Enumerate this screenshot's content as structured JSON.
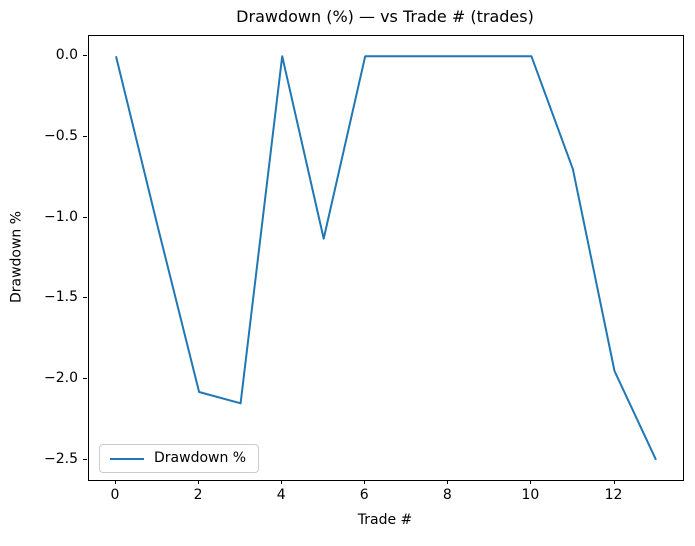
{
  "chart_data": {
    "type": "line",
    "title": "Drawdown (%) — vs Trade # (trades)",
    "xlabel": "Trade #",
    "ylabel": "Drawdown %",
    "x": [
      0,
      1,
      2,
      3,
      4,
      5,
      6,
      7,
      8,
      9,
      10,
      11,
      12,
      13
    ],
    "series": [
      {
        "name": "Drawdown %",
        "values": [
          0.0,
          -1.05,
          -2.08,
          -2.15,
          0.0,
          -1.13,
          0.0,
          0.0,
          0.0,
          0.0,
          0.0,
          -0.7,
          -1.95,
          -2.5
        ],
        "color": "#1f77b4"
      }
    ],
    "x_ticks": [
      0,
      2,
      4,
      6,
      8,
      10,
      12
    ],
    "x_tick_labels": [
      "0",
      "2",
      "4",
      "6",
      "8",
      "10",
      "12"
    ],
    "y_ticks": [
      0.0,
      -0.5,
      -1.0,
      -1.5,
      -2.0,
      -2.5
    ],
    "y_tick_labels": [
      "0.0",
      "−0.5",
      "−1.0",
      "−1.5",
      "−2.0",
      "−2.5"
    ],
    "xlim": [
      -0.65,
      13.65
    ],
    "ylim": [
      -2.625,
      0.125
    ],
    "grid": false,
    "legend_position": "lower left",
    "background": "#ffffff",
    "axis_color": "#000000"
  }
}
